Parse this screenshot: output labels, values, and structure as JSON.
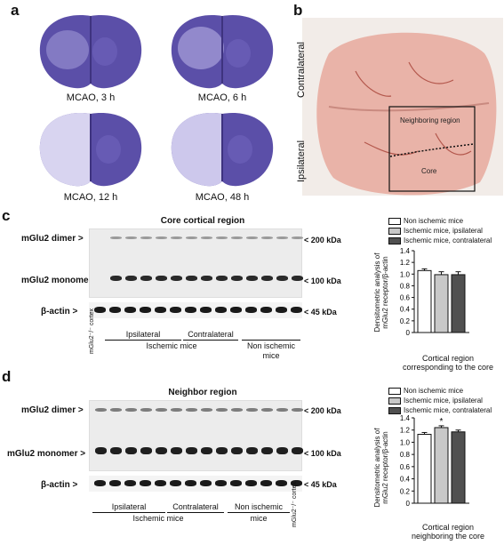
{
  "panel_a": {
    "letter": "a",
    "captions": [
      "MCAO, 3 h",
      "MCAO, 6 h",
      "MCAO, 12 h",
      "MCAO, 48 h"
    ]
  },
  "panel_b": {
    "letter": "b",
    "contralateral": "Contralateral",
    "ipsilateral": "Ipsilateral",
    "neighboring": "Neighboring region",
    "core": "Core"
  },
  "panel_c": {
    "letter": "c",
    "title": "Core cortical region",
    "dimer_label": "mGlu2 dimer >",
    "monomer_label": "mGlu2 monomer >",
    "actin_label": "β-actin >",
    "kda_200": "< 200 kDa",
    "kda_100": "< 100 kDa",
    "kda_45": "< 45 kDa",
    "ko_label": "mGlu2⁻/⁻ cortex",
    "ipsilateral": "Ipsilateral",
    "contralateral": "Contralateral",
    "ischemic_mice": "Ischemic mice",
    "non_ischemic_line1": "Non ischemic",
    "non_ischemic_line2": "mice",
    "legend": [
      "Non ischemic mice",
      "Ischemic mice, ipsilateral",
      "Ischemic mice, contralateral"
    ],
    "ylabel_line1": "Densitometric analysis of",
    "ylabel_line2": "mGlu2 receptor/β-actin",
    "xcap_line1": "Cortical region",
    "xcap_line2": "corresponding to the core"
  },
  "panel_d": {
    "letter": "d",
    "title": "Neighbor region",
    "dimer_label": "mGlu2 dimer >",
    "monomer_label": "mGlu2 monomer >",
    "actin_label": "β-actin >",
    "kda_200": "< 200 kDa",
    "kda_100": "< 100 kDa",
    "kda_45": "< 45 kDa",
    "ko_label": "mGlu2⁻/⁻ cortex",
    "ipsilateral": "Ipsilateral",
    "contralateral": "Contralateral",
    "ischemic_mice": "Ischemic mice",
    "non_ischemic_line1": "Non ischemic",
    "non_ischemic_line2": "mice",
    "legend": [
      "Non ischemic mice",
      "Ischemic mice, ipsilateral",
      "Ischemic mice, contralateral"
    ],
    "ylabel_line1": "Densitometric analysis of",
    "ylabel_line2": "mGlu2 receptor/β-actin",
    "xcap_line1": "Cortical region",
    "xcap_line2": "neighboring the core",
    "asterisk": "*"
  },
  "colors": {
    "non_ischemic": "#ffffff",
    "ipsilateral": "#c8c8c8",
    "contralateral": "#505050",
    "stain": "#5b4fa8",
    "brain_photo": "#e9b3a8"
  },
  "chart_data": [
    {
      "type": "bar",
      "categories": [
        "Non ischemic mice",
        "Ischemic mice, ipsilateral",
        "Ischemic mice, contralateral"
      ],
      "values": [
        1.06,
        0.99,
        0.99
      ],
      "errors": [
        0.03,
        0.05,
        0.05
      ],
      "ylim": [
        0,
        1.4
      ],
      "yticks": [
        "0",
        "0.2",
        "0.4",
        "0.6",
        "0.8",
        "1.0",
        "1.2",
        "1.4"
      ],
      "ylabel": "Densitometric analysis of mGlu2 receptor/β-actin",
      "xlabel": "Cortical region corresponding to the core"
    },
    {
      "type": "bar",
      "categories": [
        "Non ischemic mice",
        "Ischemic mice, ipsilateral",
        "Ischemic mice, contralateral"
      ],
      "values": [
        1.13,
        1.24,
        1.17
      ],
      "errors": [
        0.03,
        0.03,
        0.03
      ],
      "ylim": [
        0,
        1.4
      ],
      "yticks": [
        "0",
        "0.2",
        "0.4",
        "0.6",
        "0.8",
        "1.0",
        "1.2",
        "1.4"
      ],
      "ylabel": "Densitometric analysis of mGlu2 receptor/β-actin",
      "xlabel": "Cortical region neighboring the core",
      "annotation": "*"
    }
  ]
}
